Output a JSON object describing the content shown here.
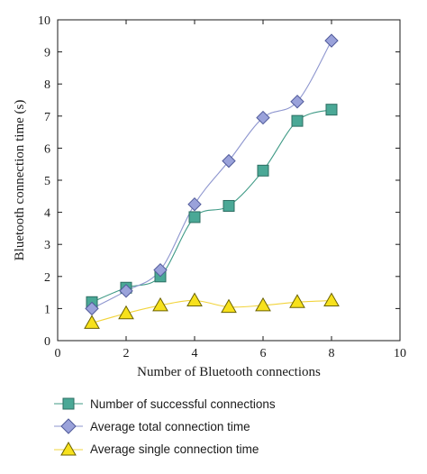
{
  "chart_data": {
    "type": "line",
    "title": "",
    "xlabel": "Number of Bluetooth connections",
    "ylabel": "Bluetooth connection time (s)",
    "xlim": [
      0,
      10
    ],
    "ylim": [
      0,
      10
    ],
    "xticks": [
      0,
      2,
      4,
      6,
      8,
      10
    ],
    "yticks": [
      0,
      1,
      2,
      3,
      4,
      5,
      6,
      7,
      8,
      9,
      10
    ],
    "grid": false,
    "legend_position": "bottom",
    "series": [
      {
        "name": "Number of successful connections",
        "marker": "square",
        "line_color": "#3f9a86",
        "marker_fill": "#4aa896",
        "marker_stroke": "#2c6e62",
        "x": [
          1,
          2,
          3,
          4,
          5,
          6,
          7,
          8
        ],
        "y": [
          1.2,
          1.65,
          2.0,
          3.85,
          4.2,
          5.3,
          6.85,
          7.2
        ]
      },
      {
        "name": "Average total connection time",
        "marker": "diamond",
        "line_color": "#8e96cf",
        "marker_fill": "#9aa2da",
        "marker_stroke": "#505a9a",
        "x": [
          1,
          2,
          3,
          4,
          5,
          6,
          7,
          8
        ],
        "y": [
          1.0,
          1.55,
          2.2,
          4.25,
          5.6,
          6.95,
          7.45,
          9.35
        ]
      },
      {
        "name": "Average single connection time",
        "marker": "triangle",
        "line_color": "#f2d43c",
        "marker_fill": "#f7e11c",
        "marker_stroke": "#6b6200",
        "x": [
          1,
          2,
          3,
          4,
          5,
          6,
          7,
          8
        ],
        "y": [
          0.55,
          0.85,
          1.1,
          1.25,
          1.05,
          1.1,
          1.2,
          1.25
        ]
      }
    ]
  }
}
